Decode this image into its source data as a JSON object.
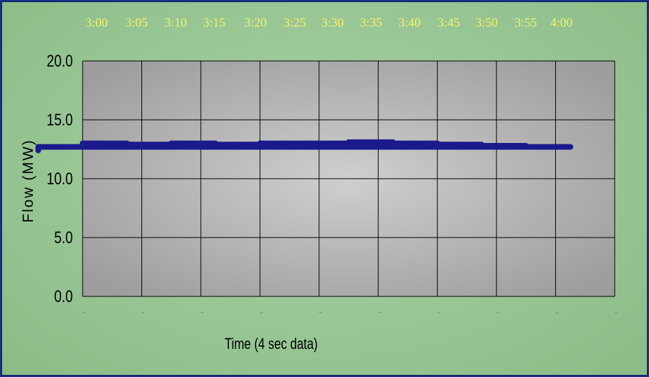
{
  "time_labels": [
    "3:00",
    "3:05",
    "3:10",
    "3:15",
    "3:20",
    "3:25",
    "3:30",
    "3:35",
    "3:40",
    "3:45",
    "3:50",
    "3:55",
    "4:00"
  ],
  "chart_data": {
    "type": "line",
    "title": "",
    "ylabel": "Flow (MW)",
    "xlabel": "Time (4 sec data)",
    "ylim": [
      0,
      20
    ],
    "yticks": [
      "0.0",
      "5.0",
      "10.0",
      "15.0",
      "20.0"
    ],
    "grid": true,
    "x_categories": [
      "3:00",
      "3:05",
      "3:10",
      "3:15",
      "3:20",
      "3:25",
      "3:30",
      "3:35",
      "3:40",
      "3:45",
      "3:50",
      "3:55",
      "4:00"
    ],
    "series": [
      {
        "color": "#1a1a8c",
        "x": [
          "3:00",
          "3:05",
          "3:10",
          "3:15",
          "3:20",
          "3:25",
          "3:30",
          "3:35",
          "3:40",
          "3:45",
          "3:50",
          "3:55",
          "3:58"
        ],
        "values": [
          13.0,
          12.9,
          13.0,
          12.9,
          13.0,
          13.0,
          13.1,
          13.0,
          12.9,
          12.8,
          12.7,
          12.7,
          12.4
        ]
      }
    ],
    "background": "gray gradient",
    "plot_line_color": "#000000"
  }
}
